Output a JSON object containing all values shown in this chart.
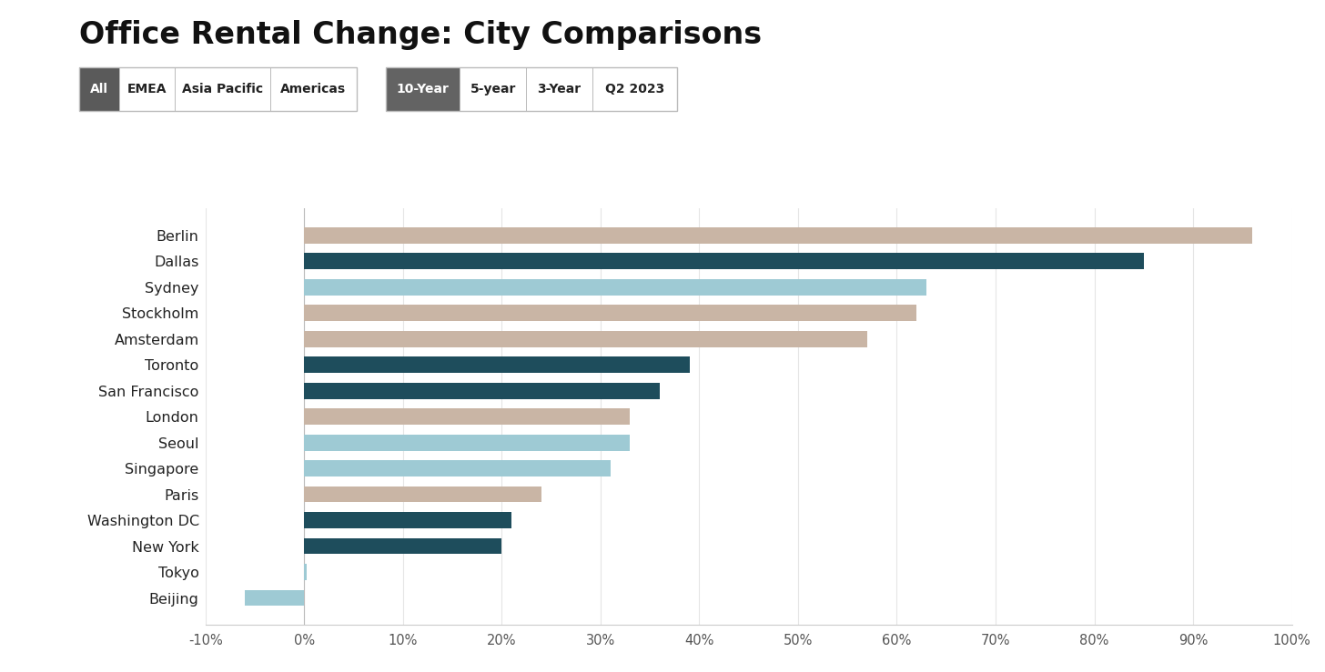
{
  "title": "Office Rental Change: City Comparisons",
  "categories": [
    "Berlin",
    "Dallas",
    "Sydney",
    "Stockholm",
    "Amsterdam",
    "Toronto",
    "San Francisco",
    "London",
    "Seoul",
    "Singapore",
    "Paris",
    "Washington DC",
    "New York",
    "Tokyo",
    "Beijing"
  ],
  "values": [
    96,
    85,
    63,
    62,
    57,
    39,
    36,
    33,
    33,
    31,
    24,
    21,
    20,
    0.3,
    -6
  ],
  "colors": [
    "#c9b5a5",
    "#1e4d5c",
    "#9ecad4",
    "#c9b5a5",
    "#c9b5a5",
    "#1e4d5c",
    "#1e4d5c",
    "#c9b5a5",
    "#9ecad4",
    "#9ecad4",
    "#c9b5a5",
    "#1e4d5c",
    "#1e4d5c",
    "#9ecad4",
    "#9ecad4"
  ],
  "xlim": [
    -10,
    100
  ],
  "xticks": [
    -10,
    0,
    10,
    20,
    30,
    40,
    50,
    60,
    70,
    80,
    90,
    100
  ],
  "xticklabels": [
    "-10%",
    "0%",
    "10%",
    "20%",
    "30%",
    "40%",
    "50%",
    "60%",
    "70%",
    "80%",
    "90%",
    "100%"
  ],
  "background_color": "#ffffff",
  "title_fontsize": 24,
  "title_fontweight": "bold",
  "bar_height": 0.62,
  "filter_buttons_group1": [
    "All",
    "EMEA",
    "Asia Pacific",
    "Americas"
  ],
  "filter_buttons_group2": [
    "10-Year",
    "5-year",
    "3-Year",
    "Q2 2023"
  ],
  "active_idx_group1": 0,
  "active_idx_group2": 0,
  "button_active_color_g1": "#5a5a5a",
  "button_active_color_g2": "#636363",
  "button_inactive_color": "#ffffff",
  "button_border_color": "#bbbbbb",
  "button_text_active": "#ffffff",
  "button_text_inactive": "#222222",
  "button_fontsize": 10,
  "button_fontweight": "bold"
}
